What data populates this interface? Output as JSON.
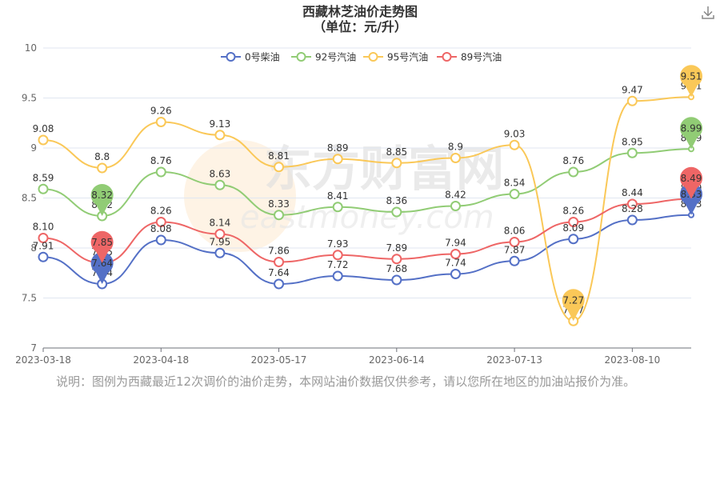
{
  "chart_data": {
    "type": "line",
    "title": [
      "西藏林芝油价走势图",
      "（单位：元/升）"
    ],
    "note": "说明：图例为西藏最近12次调价的油价走势，本网站油价数据仅供参考，请以您所在地区的加油站报价为准。",
    "xlabel": "",
    "ylabel": "",
    "ylim": [
      7,
      10
    ],
    "yticks": [
      "7",
      "7.5",
      "8",
      "8.5",
      "9",
      "9.5",
      "10"
    ],
    "x_tick_labels": [
      "2023-03-18",
      "2023-04-18",
      "2023-05-17",
      "2023-06-14",
      "2023-07-13",
      "2023-08-10"
    ],
    "legend_position": "top",
    "grid": true,
    "watermark": [
      "东方财富网",
      "eastmoney.com"
    ],
    "colors": {
      "diesel0": "#5470c6",
      "gas92": "#91cc75",
      "gas95": "#fac858",
      "gas89": "#ee6666"
    },
    "series": [
      {
        "name": "0号柴油",
        "color": "#5470c6",
        "values": [
          7.91,
          7.64,
          8.08,
          7.95,
          7.64,
          7.72,
          7.68,
          7.74,
          7.87,
          8.09,
          8.28,
          8.33
        ],
        "labels": [
          "7.91",
          "7.64",
          "8.08",
          "7.95",
          "7.64",
          "7.72",
          "7.68",
          "7.74",
          "7.87",
          "8.09",
          "8.28",
          "8.33"
        ],
        "pins": [
          [
            "7.64",
            1
          ],
          [
            "8.33",
            11
          ]
        ]
      },
      {
        "name": "92号汽油",
        "color": "#91cc75",
        "values": [
          8.59,
          8.32,
          8.76,
          8.63,
          8.33,
          8.41,
          8.36,
          8.42,
          8.54,
          8.76,
          8.95,
          8.99
        ],
        "labels": [
          "8.59",
          "8.32",
          "8.76",
          "8.63",
          "8.33",
          "8.41",
          "8.36",
          "8.42",
          "8.54",
          "8.76",
          "8.95",
          "8.99"
        ],
        "pins": [
          [
            "8.32",
            1
          ],
          [
            "8.99",
            11
          ]
        ]
      },
      {
        "name": "95号汽油",
        "color": "#fac858",
        "values": [
          9.08,
          8.8,
          9.26,
          9.13,
          8.81,
          8.89,
          8.85,
          8.9,
          9.03,
          7.27,
          9.47,
          9.51
        ],
        "labels": [
          "9.08",
          "8.8",
          "9.26",
          "9.13",
          "8.81",
          "8.89",
          "8.85",
          "8.9",
          "9.03",
          "7.27",
          "9.47",
          "9.51"
        ],
        "pins": [
          [
            "7.27",
            9
          ],
          [
            "9.51",
            11
          ]
        ]
      },
      {
        "name": "89号汽油",
        "color": "#ee6666",
        "values": [
          8.1,
          7.85,
          8.26,
          8.14,
          7.86,
          7.93,
          7.89,
          7.94,
          8.06,
          8.26,
          8.44,
          8.49
        ],
        "labels": [
          "8.10",
          "7.85",
          "8.26",
          "8.14",
          "7.86",
          "7.93",
          "7.89",
          "7.94",
          "8.06",
          "8.26",
          "8.44",
          "8.49"
        ],
        "pins": [
          [
            "7.85",
            1
          ],
          [
            "8.49",
            11
          ]
        ]
      }
    ]
  }
}
